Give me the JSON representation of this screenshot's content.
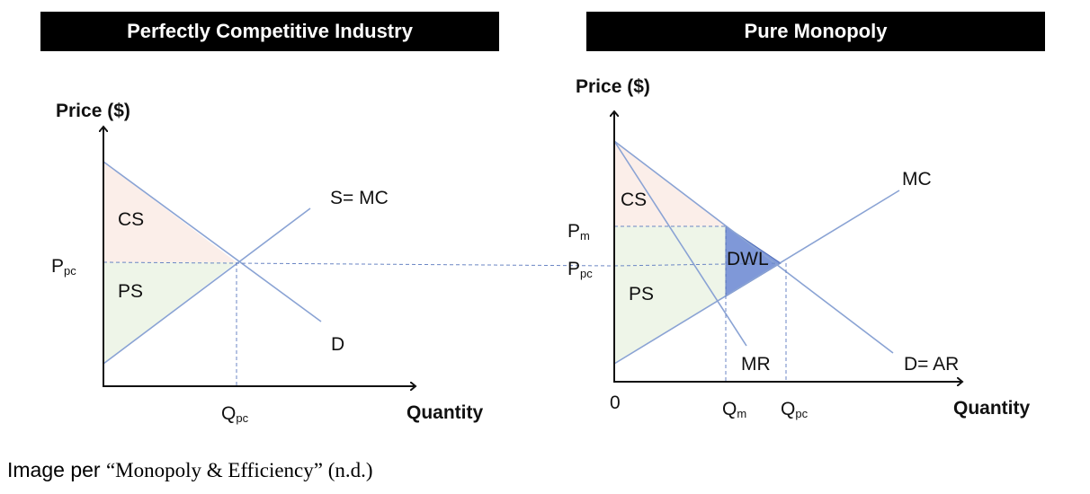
{
  "panels": {
    "left": {
      "title": "Perfectly Competitive Industry",
      "y_axis_label": "Price ($)",
      "x_axis_label": "Quantity",
      "curves": {
        "supply": "S= MC",
        "demand": "D"
      },
      "areas": {
        "consumer_surplus": "CS",
        "producer_surplus": "PS"
      },
      "price_label": {
        "main": "P",
        "sub": "pc"
      },
      "quantity_label": {
        "main": "Q",
        "sub": "pc"
      }
    },
    "right": {
      "title": "Pure Monopoly",
      "y_axis_label": "Price ($)",
      "x_axis_label": "Quantity",
      "curves": {
        "marginal_cost": "MC",
        "marginal_revenue": "MR",
        "demand": "D= AR"
      },
      "areas": {
        "consumer_surplus": "CS",
        "producer_surplus": "PS",
        "deadweight_loss": "DWL"
      },
      "origin_label": "0",
      "price_labels": {
        "monopoly": {
          "main": "P",
          "sub": "m"
        },
        "competitive": {
          "main": "P",
          "sub": "pc"
        }
      },
      "quantity_labels": {
        "monopoly": {
          "main": "Q",
          "sub": "m"
        },
        "competitive": {
          "main": "Q",
          "sub": "pc"
        }
      }
    }
  },
  "caption": {
    "prefix": "Image per ",
    "citation": "“Monopoly & Efficiency” (n.d.)"
  },
  "colors": {
    "curve": "#8aa3d4",
    "cs_fill": "#fbeee9",
    "ps_fill": "#eef5e8",
    "dwl_fill": "#7f98d8",
    "dash": "#6b86c4"
  }
}
